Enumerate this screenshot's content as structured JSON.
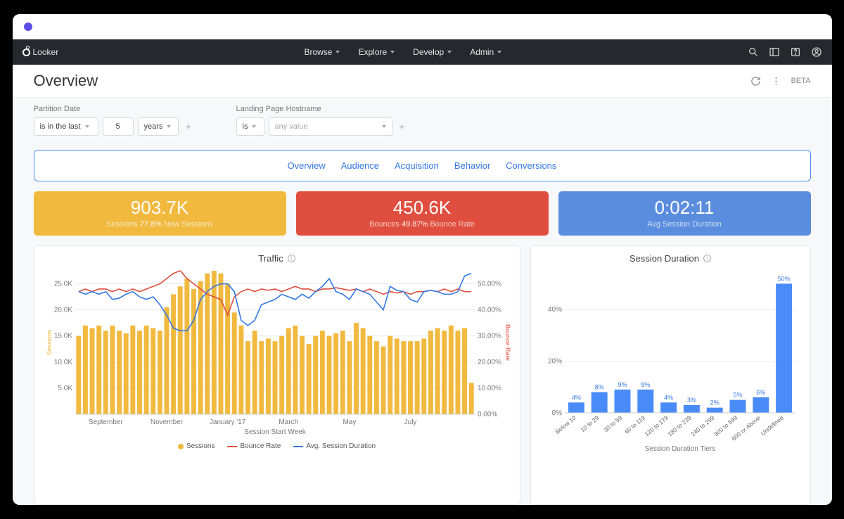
{
  "brand": "Looker",
  "nav": {
    "items": [
      "Browse",
      "Explore",
      "Develop",
      "Admin"
    ],
    "beta": "BETA"
  },
  "page": {
    "title": "Overview"
  },
  "filters": {
    "partition": {
      "label": "Partition Date",
      "op": "is in the last",
      "value": "5",
      "unit": "years"
    },
    "hostname": {
      "label": "Landing Page Hostname",
      "op": "is",
      "value": "any value"
    }
  },
  "pills": [
    "Overview",
    "Audience",
    "Acquisition",
    "Behavior",
    "Conversions"
  ],
  "kpis": [
    {
      "big": "903.7K",
      "sub_pre": "Sessions ",
      "pct": "77.8%",
      "sub_post": " New Sessions",
      "bg": "#f1b93e"
    },
    {
      "big": "450.6K",
      "sub_pre": "Bounces ",
      "pct": "49.87%",
      "sub_post": " Bounce Rate",
      "bg": "#e04e3f"
    },
    {
      "big": "0:02:11",
      "sub_pre": "",
      "pct": "",
      "sub_post": "Avg Session Duration",
      "bg": "#5b8ddf"
    }
  ],
  "traffic": {
    "title": "Traffic",
    "series_name_bar": "Sessions",
    "series_name_line1": "Bounce Rate",
    "series_name_line2": "Avg. Session Duration",
    "xaxis_label": "Session Start Week",
    "yaxis_left_label": "Sessions",
    "yaxis_right_label": "Bounce Rate",
    "colors": {
      "bar": "#f1b93e",
      "line1": "#e04e3f",
      "line2": "#3478e5",
      "grid": "#e8e9ec",
      "text": "#777"
    },
    "yleft": {
      "min": 0,
      "max": 27500,
      "ticks": [
        5000,
        10000,
        15000,
        20000,
        25000
      ],
      "tick_labels": [
        "5.0K",
        "10.0K",
        "15.0K",
        "20.0K",
        "25.0K"
      ]
    },
    "yright": {
      "min": 0,
      "max": 55,
      "ticks": [
        0,
        10,
        20,
        30,
        40,
        50
      ],
      "tick_labels": [
        "0.00%",
        "10.00%",
        "20.00%",
        "30.00%",
        "40.00%",
        "50.00%"
      ]
    },
    "x_month_labels": [
      "September",
      "November",
      "January '17",
      "March",
      "May",
      "July"
    ],
    "bars": [
      15,
      17,
      16.5,
      17,
      16,
      17,
      16,
      15.5,
      17,
      16,
      17,
      16.5,
      16,
      20.5,
      23,
      24.5,
      26,
      24,
      25.5,
      27,
      27.5,
      27,
      25,
      19.5,
      17,
      14,
      16,
      14,
      14.5,
      14,
      15,
      16.5,
      17,
      15,
      13.5,
      15,
      16,
      15,
      15.5,
      16,
      14,
      17.5,
      16.5,
      15,
      14,
      13,
      15,
      14.5,
      14,
      14,
      14,
      14.5,
      16,
      16.5,
      16,
      17,
      16,
      16.5,
      6
    ],
    "bounce": [
      47,
      48,
      47,
      48,
      48,
      47,
      48,
      47,
      48,
      47,
      48,
      49,
      50,
      52,
      54,
      55,
      52,
      50,
      48,
      46,
      45,
      44,
      38,
      45,
      47,
      48,
      47,
      48,
      47.5,
      48,
      47,
      48,
      49,
      48,
      48,
      47,
      48,
      48,
      48.5,
      48,
      47.5,
      48,
      47,
      48,
      47,
      46,
      47,
      46.5,
      47,
      46,
      47,
      47,
      47.5,
      47,
      48,
      47,
      48,
      47,
      47
    ],
    "avgdur": [
      47,
      46,
      47,
      46,
      47,
      44,
      44.5,
      46,
      47,
      45,
      44,
      45,
      42,
      38,
      33,
      32,
      32,
      36,
      44,
      47,
      49,
      50,
      50,
      47,
      36,
      34,
      36,
      42,
      43,
      44,
      46,
      45,
      44,
      46,
      44.5,
      47,
      49,
      52,
      47,
      46,
      44,
      48,
      47,
      46,
      43,
      40,
      49,
      47.5,
      47,
      44,
      43,
      47,
      47.5,
      47,
      46,
      46,
      47,
      53,
      54
    ]
  },
  "duration": {
    "title": "Session Duration",
    "xaxis_label": "Session Duration Tiers",
    "yticks": [
      0,
      20,
      40
    ],
    "ytick_labels": [
      "0%",
      "20%",
      "40%"
    ],
    "color": "#4a8cf7",
    "grid": "#e8e9ec",
    "tiers": [
      "Below 10",
      "10 to 29",
      "30 to 59",
      "60 to 119",
      "120 to 179",
      "180 to 239",
      "240 to 299",
      "300 to 599",
      "600 or Above",
      "Undefined"
    ],
    "values": [
      4,
      8,
      9,
      9,
      4,
      3,
      2,
      5,
      6,
      50
    ]
  }
}
